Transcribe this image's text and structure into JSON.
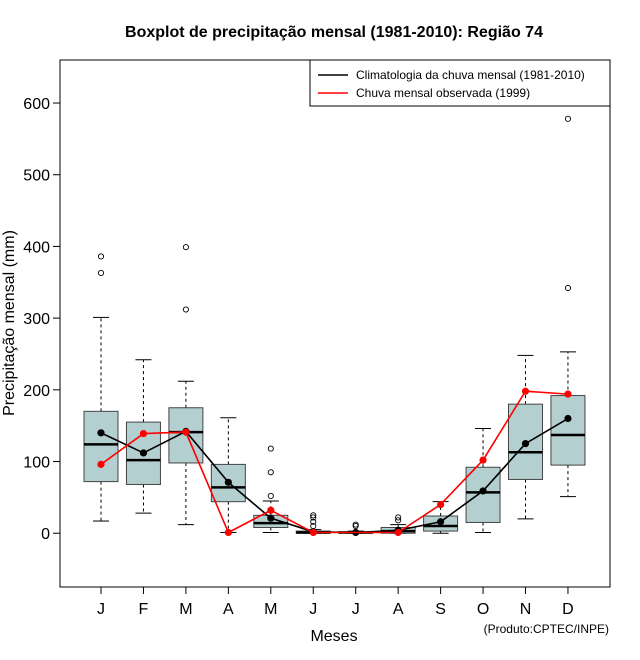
{
  "chart_data": {
    "type": "boxplot",
    "title": "Boxplot de precipitação mensal (1981-2010): Região 74",
    "xlabel": "Meses",
    "ylabel": "Precipitação mensal (mm)",
    "ylim": [
      -75,
      660
    ],
    "yticks": [
      0,
      100,
      200,
      300,
      400,
      500,
      600
    ],
    "categories": [
      "J",
      "F",
      "M",
      "A",
      "M",
      "J",
      "J",
      "A",
      "S",
      "O",
      "N",
      "D"
    ],
    "boxes": [
      {
        "whisker_low": 17,
        "q1": 72,
        "median": 124,
        "q3": 170,
        "whisker_high": 301,
        "outliers": [
          363,
          386
        ]
      },
      {
        "whisker_low": 28,
        "q1": 68,
        "median": 102,
        "q3": 155,
        "whisker_high": 242,
        "outliers": []
      },
      {
        "whisker_low": 12,
        "q1": 98,
        "median": 141,
        "q3": 175,
        "whisker_high": 212,
        "outliers": [
          312,
          399
        ]
      },
      {
        "whisker_low": 1,
        "q1": 44,
        "median": 64,
        "q3": 96,
        "whisker_high": 161,
        "outliers": []
      },
      {
        "whisker_low": 1,
        "q1": 8,
        "median": 14,
        "q3": 25,
        "whisker_high": 45,
        "outliers": [
          52,
          85,
          118
        ]
      },
      {
        "whisker_low": 0,
        "q1": 0,
        "median": 1,
        "q3": 3,
        "whisker_high": 5,
        "outliers": [
          10,
          16,
          22,
          25
        ]
      },
      {
        "whisker_low": 0,
        "q1": 0,
        "median": 1,
        "q3": 2,
        "whisker_high": 3,
        "outliers": [
          10,
          12
        ]
      },
      {
        "whisker_low": 0,
        "q1": 0,
        "median": 3,
        "q3": 8,
        "whisker_high": 12,
        "outliers": [
          18,
          22
        ]
      },
      {
        "whisker_low": 0,
        "q1": 3,
        "median": 10,
        "q3": 24,
        "whisker_high": 44,
        "outliers": []
      },
      {
        "whisker_low": 1,
        "q1": 15,
        "median": 57,
        "q3": 92,
        "whisker_high": 146,
        "outliers": []
      },
      {
        "whisker_low": 20,
        "q1": 75,
        "median": 113,
        "q3": 180,
        "whisker_high": 248,
        "outliers": []
      },
      {
        "whisker_low": 51,
        "q1": 95,
        "median": 137,
        "q3": 192,
        "whisker_high": 253,
        "outliers": [
          342,
          578
        ]
      }
    ],
    "series": [
      {
        "name": "Climatologia da chuva mensal (1981-2010)",
        "color": "#000000",
        "values": [
          140,
          112,
          142,
          71,
          21,
          2,
          1,
          4,
          16,
          59,
          125,
          160
        ]
      },
      {
        "name": "Chuva mensal observada (1999)",
        "color": "#ff0000",
        "values": [
          96,
          139,
          141,
          1,
          32,
          1,
          null,
          1,
          40,
          102,
          198,
          194
        ]
      }
    ],
    "legend_position": "top-right",
    "box_fill": "#b4cfcf",
    "credit": "(Produto:CPTEC/INPE)"
  }
}
